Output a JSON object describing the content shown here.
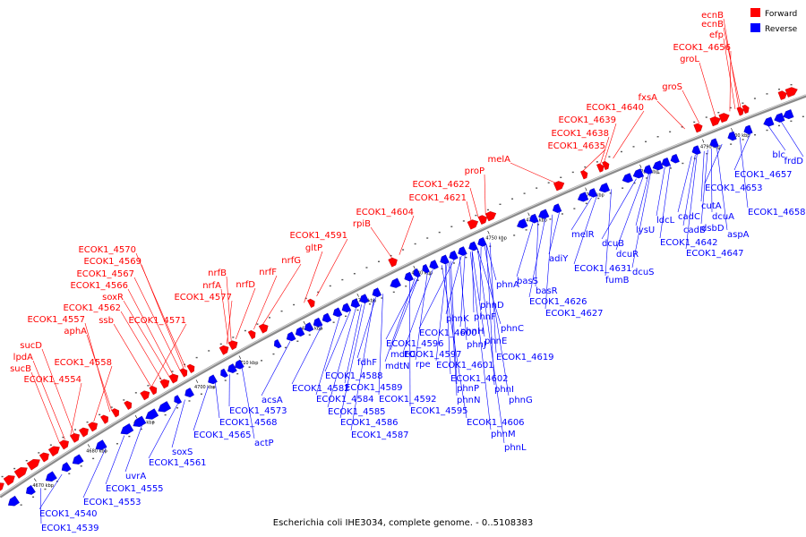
{
  "caption": "Escherichia coli IHE3034, complete genome. - 0..5108383",
  "legend": {
    "forward": "Forward",
    "reverse": "Reverse"
  },
  "colors": {
    "forward": "#ff0000",
    "reverse": "#0000ff",
    "forward_dark": "#b40000",
    "reverse_dark": "#0000a0",
    "backbone": "#8a8a8a"
  },
  "ticks": [
    "4670 kbp",
    "4680 kbp",
    "4690 kbp",
    "4700 kbp",
    "4710 kbp",
    "4720 kbp",
    "4730 kbp",
    "4740 kbp",
    "4750 kbp",
    "4760 kbp",
    "4770 kbp",
    "4780 kbp",
    "4790 kbp",
    "4800 kbp"
  ],
  "forward_labels": [
    {
      "text": "ecnB"
    },
    {
      "text": "ecnB"
    },
    {
      "text": "efp"
    },
    {
      "text": "ECOK1_4656"
    },
    {
      "text": "groL"
    },
    {
      "text": "groS"
    },
    {
      "text": "fxsA"
    },
    {
      "text": "ECOK1_4640"
    },
    {
      "text": "ECOK1_4639"
    },
    {
      "text": "ECOK1_4638"
    },
    {
      "text": "ECOK1_4635"
    },
    {
      "text": "melA"
    },
    {
      "text": "proP"
    },
    {
      "text": "ECOK1_4622"
    },
    {
      "text": "ECOK1_4621"
    },
    {
      "text": "ECOK1_4604"
    },
    {
      "text": "rpiB"
    },
    {
      "text": "ECOK1_4591"
    },
    {
      "text": "gltP"
    },
    {
      "text": "nrfG"
    },
    {
      "text": "nrfF"
    },
    {
      "text": "nrfD"
    },
    {
      "text": "nrfB"
    },
    {
      "text": "nrfA"
    },
    {
      "text": "ECOK1_4577"
    },
    {
      "text": "ECOK1_4570"
    },
    {
      "text": "ECOK1_4569"
    },
    {
      "text": "ECOK1_4567"
    },
    {
      "text": "ECOK1_4566"
    },
    {
      "text": "soxR"
    },
    {
      "text": "ECOK1_4562"
    },
    {
      "text": "ssb"
    },
    {
      "text": "ECOK1_4571"
    },
    {
      "text": "ECOK1_4557"
    },
    {
      "text": "aphA"
    },
    {
      "text": "sucD"
    },
    {
      "text": "lpdA"
    },
    {
      "text": "sucB"
    },
    {
      "text": "ECOK1_4558"
    },
    {
      "text": "ECOK1_4554"
    }
  ],
  "reverse_labels": [
    {
      "text": "frdD"
    },
    {
      "text": "blc"
    },
    {
      "text": "ECOK1_4657"
    },
    {
      "text": "ECOK1_4658"
    },
    {
      "text": "ECOK1_4653"
    },
    {
      "text": "aspA"
    },
    {
      "text": "dcuA"
    },
    {
      "text": "dsbD"
    },
    {
      "text": "cutA"
    },
    {
      "text": "cadC"
    },
    {
      "text": "cadB"
    },
    {
      "text": "ECOK1_4647"
    },
    {
      "text": "ldcL"
    },
    {
      "text": "lysU"
    },
    {
      "text": "ECOK1_4642"
    },
    {
      "text": "dcuB"
    },
    {
      "text": "dcuR"
    },
    {
      "text": "dcuS"
    },
    {
      "text": "melR"
    },
    {
      "text": "ECOK1_4631"
    },
    {
      "text": "fumB"
    },
    {
      "text": "adiY"
    },
    {
      "text": "basS"
    },
    {
      "text": "basR"
    },
    {
      "text": "ECOK1_4626"
    },
    {
      "text": "ECOK1_4627"
    },
    {
      "text": "phnA"
    },
    {
      "text": "phnD"
    },
    {
      "text": "phnC"
    },
    {
      "text": "phnE"
    },
    {
      "text": "phnF"
    },
    {
      "text": "phnK"
    },
    {
      "text": "phnH"
    },
    {
      "text": "ECOK1_4600"
    },
    {
      "text": "phnJ"
    },
    {
      "text": "ECOK1_4596"
    },
    {
      "text": "ECOK1_4597"
    },
    {
      "text": "ECOK1_4619"
    },
    {
      "text": "mdtO"
    },
    {
      "text": "rpe"
    },
    {
      "text": "ECOK1_4601"
    },
    {
      "text": "mdtN"
    },
    {
      "text": "ECOK1_4602"
    },
    {
      "text": "fdhF"
    },
    {
      "text": "phnP"
    },
    {
      "text": "phnI"
    },
    {
      "text": "ECOK1_4588"
    },
    {
      "text": "ECOK1_4589"
    },
    {
      "text": "phnN"
    },
    {
      "text": "phnG"
    },
    {
      "text": "ECOK1_4582"
    },
    {
      "text": "ECOK1_4592"
    },
    {
      "text": "ECOK1_4584"
    },
    {
      "text": "ECOK1_4595"
    },
    {
      "text": "ECOK1_4606"
    },
    {
      "text": "ECOK1_4585"
    },
    {
      "text": "ECOK1_4586"
    },
    {
      "text": "phnM"
    },
    {
      "text": "ECOK1_4587"
    },
    {
      "text": "phnL"
    },
    {
      "text": "acsA"
    },
    {
      "text": "ECOK1_4573"
    },
    {
      "text": "ECOK1_4568"
    },
    {
      "text": "ECOK1_4565"
    },
    {
      "text": "actP"
    },
    {
      "text": "soxS"
    },
    {
      "text": "ECOK1_4561"
    },
    {
      "text": "uvrA"
    },
    {
      "text": "ECOK1_4555"
    },
    {
      "text": "ECOK1_4553"
    },
    {
      "text": "ECOK1_4540"
    },
    {
      "text": "ECOK1_4539"
    }
  ]
}
